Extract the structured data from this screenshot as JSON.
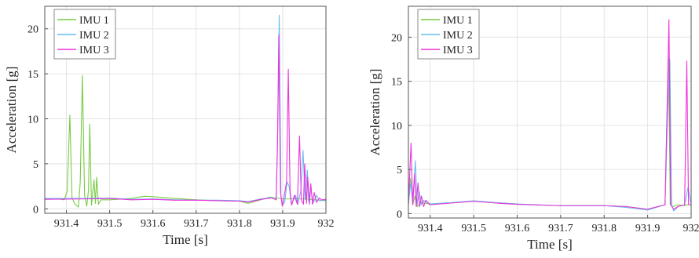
{
  "chart_data": [
    {
      "type": "line",
      "xlabel": "Time [s]",
      "ylabel": "Acceleration [g]",
      "xlim": [
        931.35,
        932.0
      ],
      "ylim": [
        -0.5,
        22.5
      ],
      "xticks": [
        931.4,
        931.5,
        931.6,
        931.7,
        931.8,
        931.9,
        932
      ],
      "xtick_labels": [
        "931.4",
        "931.5",
        "931.6",
        "931.7",
        "931.8",
        "931.9",
        "932"
      ],
      "yticks": [
        0,
        5,
        10,
        15,
        20
      ],
      "ytick_labels": [
        "0",
        "5",
        "10",
        "15",
        "20"
      ],
      "grid": true,
      "legend_position": "top-left",
      "series": [
        {
          "name": "IMU 1",
          "color": "#77cc44",
          "points": [
            [
              931.35,
              1.1
            ],
            [
              931.38,
              1.1
            ],
            [
              931.395,
              1.0
            ],
            [
              931.402,
              2.0
            ],
            [
              931.408,
              10.4
            ],
            [
              931.413,
              1.2
            ],
            [
              931.42,
              0.5
            ],
            [
              931.428,
              0.2
            ],
            [
              931.432,
              3.0
            ],
            [
              931.437,
              14.8
            ],
            [
              931.442,
              1.5
            ],
            [
              931.447,
              0.3
            ],
            [
              931.451,
              2.0
            ],
            [
              931.454,
              9.4
            ],
            [
              931.458,
              0.4
            ],
            [
              931.461,
              1.8
            ],
            [
              931.464,
              3.2
            ],
            [
              931.467,
              0.6
            ],
            [
              931.47,
              3.5
            ],
            [
              931.474,
              0.5
            ],
            [
              931.48,
              1.0
            ],
            [
              931.5,
              1.0
            ],
            [
              931.55,
              1.15
            ],
            [
              931.58,
              1.4
            ],
            [
              931.6,
              1.35
            ],
            [
              931.65,
              1.15
            ],
            [
              931.7,
              1.0
            ],
            [
              931.75,
              0.9
            ],
            [
              931.8,
              0.85
            ],
            [
              931.82,
              0.6
            ],
            [
              931.85,
              1.0
            ],
            [
              931.87,
              1.3
            ],
            [
              931.885,
              1.2
            ],
            [
              931.9,
              1.1
            ],
            [
              931.95,
              1.1
            ],
            [
              932.0,
              0.9
            ]
          ]
        },
        {
          "name": "IMU 2",
          "color": "#66bbee",
          "points": [
            [
              931.35,
              1.15
            ],
            [
              931.45,
              1.15
            ],
            [
              931.5,
              1.2
            ],
            [
              931.55,
              1.05
            ],
            [
              931.6,
              1.1
            ],
            [
              931.65,
              1.0
            ],
            [
              931.7,
              0.95
            ],
            [
              931.75,
              0.95
            ],
            [
              931.8,
              0.9
            ],
            [
              931.82,
              0.8
            ],
            [
              931.85,
              1.1
            ],
            [
              931.875,
              1.25
            ],
            [
              931.885,
              1.0
            ],
            [
              931.889,
              10.0
            ],
            [
              931.892,
              21.5
            ],
            [
              931.896,
              1.5
            ],
            [
              931.9,
              0.4
            ],
            [
              931.905,
              0.8
            ],
            [
              931.91,
              3.0
            ],
            [
              931.915,
              2.5
            ],
            [
              931.92,
              0.5
            ],
            [
              931.93,
              1.5
            ],
            [
              931.935,
              0.5
            ],
            [
              931.942,
              2.0
            ],
            [
              931.947,
              6.5
            ],
            [
              931.952,
              1.0
            ],
            [
              931.957,
              4.3
            ],
            [
              931.96,
              0.8
            ],
            [
              931.965,
              2.5
            ],
            [
              931.97,
              0.6
            ],
            [
              931.978,
              1.5
            ],
            [
              931.985,
              0.9
            ],
            [
              932.0,
              1.0
            ]
          ]
        },
        {
          "name": "IMU 3",
          "color": "#ee33dd",
          "points": [
            [
              931.35,
              1.05
            ],
            [
              931.45,
              1.1
            ],
            [
              931.5,
              1.15
            ],
            [
              931.55,
              1.0
            ],
            [
              931.6,
              1.05
            ],
            [
              931.65,
              0.95
            ],
            [
              931.7,
              0.95
            ],
            [
              931.75,
              0.9
            ],
            [
              931.8,
              0.85
            ],
            [
              931.82,
              0.75
            ],
            [
              931.85,
              1.05
            ],
            [
              931.875,
              1.2
            ],
            [
              931.885,
              1.0
            ],
            [
              931.888,
              7.0
            ],
            [
              931.891,
              19.3
            ],
            [
              931.895,
              1.8
            ],
            [
              931.899,
              0.3
            ],
            [
              931.902,
              1.0
            ],
            [
              931.909,
              3.0
            ],
            [
              931.913,
              15.5
            ],
            [
              931.917,
              2.0
            ],
            [
              931.921,
              0.4
            ],
            [
              931.927,
              1.5
            ],
            [
              931.934,
              0.5
            ],
            [
              931.939,
              8.1
            ],
            [
              931.943,
              1.0
            ],
            [
              931.948,
              0.5
            ],
            [
              931.951,
              5.0
            ],
            [
              931.955,
              0.6
            ],
            [
              931.958,
              3.5
            ],
            [
              931.962,
              0.5
            ],
            [
              931.965,
              2.8
            ],
            [
              931.969,
              0.5
            ],
            [
              931.973,
              1.8
            ],
            [
              931.978,
              0.7
            ],
            [
              931.985,
              1.2
            ],
            [
              931.99,
              1.0
            ],
            [
              932.0,
              1.05
            ]
          ]
        }
      ]
    },
    {
      "type": "line",
      "xlabel": "Time [s]",
      "ylabel": "Acceleration [g]",
      "xlim": [
        931.35,
        932.0
      ],
      "ylim": [
        -0.5,
        23.5
      ],
      "xticks": [
        931.4,
        931.5,
        931.6,
        931.7,
        931.8,
        931.9,
        932
      ],
      "xtick_labels": [
        "931.4",
        "931.5",
        "931.6",
        "931.7",
        "931.8",
        "931.9",
        "932"
      ],
      "yticks": [
        0,
        5,
        10,
        15,
        20
      ],
      "ytick_labels": [
        "0",
        "5",
        "10",
        "15",
        "20"
      ],
      "grid": true,
      "legend_position": "top-left",
      "series": [
        {
          "name": "IMU 1",
          "color": "#77cc44",
          "points": [
            [
              931.35,
              1.0
            ],
            [
              931.355,
              4.0
            ],
            [
              931.36,
              1.0
            ],
            [
              931.365,
              2.0
            ],
            [
              931.37,
              0.8
            ],
            [
              931.38,
              1.3
            ],
            [
              931.4,
              1.05
            ],
            [
              931.45,
              1.2
            ],
            [
              931.5,
              1.4
            ],
            [
              931.55,
              1.2
            ],
            [
              931.6,
              1.05
            ],
            [
              931.7,
              0.9
            ],
            [
              931.8,
              0.9
            ],
            [
              931.85,
              0.8
            ],
            [
              931.9,
              0.5
            ],
            [
              931.94,
              1.0
            ],
            [
              931.948,
              17.8
            ],
            [
              931.952,
              1.0
            ],
            [
              931.958,
              0.8
            ],
            [
              931.97,
              1.0
            ],
            [
              931.985,
              0.9
            ],
            [
              931.99,
              1.0
            ],
            [
              932.0,
              1.0
            ]
          ]
        },
        {
          "name": "IMU 2",
          "color": "#66bbee",
          "points": [
            [
              931.35,
              1.0
            ],
            [
              931.355,
              3.5
            ],
            [
              931.36,
              1.2
            ],
            [
              931.366,
              6.0
            ],
            [
              931.37,
              1.0
            ],
            [
              931.375,
              2.5
            ],
            [
              931.38,
              1.0
            ],
            [
              931.385,
              1.5
            ],
            [
              931.4,
              1.1
            ],
            [
              931.45,
              1.25
            ],
            [
              931.5,
              1.45
            ],
            [
              931.55,
              1.25
            ],
            [
              931.6,
              1.1
            ],
            [
              931.7,
              0.9
            ],
            [
              931.8,
              0.9
            ],
            [
              931.85,
              0.7
            ],
            [
              931.9,
              0.4
            ],
            [
              931.94,
              1.0
            ],
            [
              931.947,
              13.0
            ],
            [
              931.951,
              17.5
            ],
            [
              931.955,
              1.0
            ],
            [
              931.96,
              0.3
            ],
            [
              931.97,
              0.8
            ],
            [
              931.985,
              1.0
            ],
            [
              931.993,
              3.0
            ],
            [
              932.0,
              1.0
            ]
          ]
        },
        {
          "name": "IMU 3",
          "color": "#ee33dd",
          "points": [
            [
              931.35,
              1.0
            ],
            [
              931.356,
              8.0
            ],
            [
              931.36,
              1.0
            ],
            [
              931.364,
              4.5
            ],
            [
              931.368,
              0.8
            ],
            [
              931.372,
              3.5
            ],
            [
              931.376,
              0.8
            ],
            [
              931.38,
              2.0
            ],
            [
              931.385,
              0.8
            ],
            [
              931.39,
              1.5
            ],
            [
              931.4,
              1.0
            ],
            [
              931.45,
              1.2
            ],
            [
              931.5,
              1.4
            ],
            [
              931.55,
              1.2
            ],
            [
              931.6,
              1.05
            ],
            [
              931.7,
              0.9
            ],
            [
              931.8,
              0.9
            ],
            [
              931.85,
              0.8
            ],
            [
              931.9,
              0.5
            ],
            [
              931.94,
              1.0
            ],
            [
              931.949,
              22.0
            ],
            [
              931.953,
              1.0
            ],
            [
              931.96,
              0.5
            ],
            [
              931.97,
              0.8
            ],
            [
              931.985,
              1.0
            ],
            [
              931.99,
              17.3
            ],
            [
              931.994,
              1.0
            ],
            [
              932.0,
              1.0
            ]
          ]
        }
      ]
    }
  ]
}
